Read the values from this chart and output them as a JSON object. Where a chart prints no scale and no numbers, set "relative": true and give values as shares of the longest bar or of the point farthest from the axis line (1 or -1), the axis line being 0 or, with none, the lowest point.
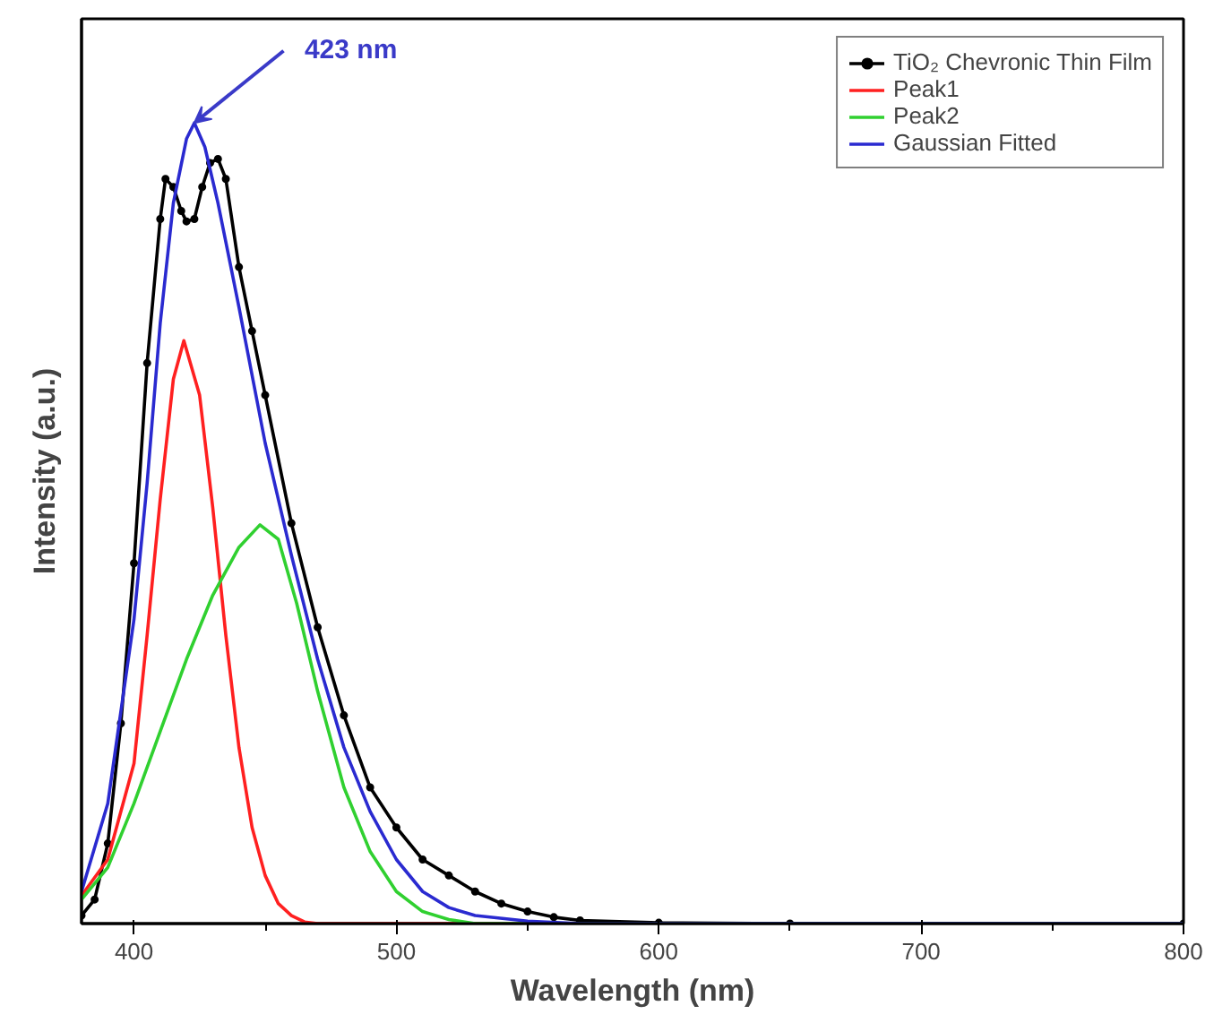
{
  "chart_data": {
    "type": "line",
    "relative": true,
    "xlabel": "Wavelength (nm)",
    "ylabel": "Intensity (a.u.)",
    "xlim": [
      380,
      800
    ],
    "xticks": [
      400,
      500,
      600,
      700,
      800
    ],
    "tick_labels": "x",
    "grid": false,
    "legend": "top right",
    "line_style": "solid",
    "annotations": [
      {
        "text": "423 nm",
        "x": 423,
        "y": 1.0
      }
    ],
    "series": [
      {
        "name": "TiO₂ Chevronic Thin Film",
        "color": "#000000",
        "marker": "circle",
        "x": [
          380,
          385,
          390,
          395,
          400,
          405,
          410,
          412,
          415,
          418,
          420,
          423,
          426,
          429,
          432,
          435,
          440,
          445,
          450,
          460,
          470,
          480,
          490,
          500,
          510,
          520,
          530,
          540,
          550,
          560,
          570,
          600,
          650,
          800
        ],
        "values": [
          0.01,
          0.03,
          0.1,
          0.25,
          0.45,
          0.7,
          0.88,
          0.93,
          0.92,
          0.89,
          0.877,
          0.88,
          0.92,
          0.95,
          0.955,
          0.93,
          0.82,
          0.74,
          0.66,
          0.5,
          0.37,
          0.26,
          0.17,
          0.12,
          0.08,
          0.06,
          0.04,
          0.025,
          0.015,
          0.008,
          0.004,
          0.001,
          0,
          0
        ]
      },
      {
        "name": "Peak1",
        "color": "#ff2020",
        "marker": "none",
        "x": [
          380,
          390,
          400,
          405,
          410,
          415,
          419,
          425,
          430,
          435,
          440,
          445,
          450,
          455,
          460,
          465,
          470,
          800
        ],
        "values": [
          0.035,
          0.08,
          0.2,
          0.36,
          0.53,
          0.68,
          0.728,
          0.66,
          0.52,
          0.36,
          0.22,
          0.12,
          0.06,
          0.025,
          0.01,
          0.002,
          0,
          0
        ]
      },
      {
        "name": "Peak2",
        "color": "#30d030",
        "marker": "none",
        "x": [
          380,
          390,
          400,
          410,
          420,
          430,
          440,
          448,
          455,
          462,
          470,
          480,
          490,
          500,
          510,
          520,
          530,
          800
        ],
        "values": [
          0.03,
          0.07,
          0.15,
          0.24,
          0.33,
          0.41,
          0.47,
          0.498,
          0.48,
          0.4,
          0.29,
          0.17,
          0.09,
          0.04,
          0.015,
          0.005,
          0,
          0
        ]
      },
      {
        "name": "Gaussian Fitted",
        "color": "#2a2ad0",
        "marker": "none",
        "x": [
          380,
          390,
          400,
          405,
          410,
          415,
          420,
          423,
          427,
          432,
          440,
          450,
          460,
          470,
          480,
          490,
          500,
          510,
          520,
          530,
          550,
          570,
          800
        ],
        "values": [
          0.04,
          0.15,
          0.38,
          0.55,
          0.75,
          0.9,
          0.98,
          1.0,
          0.97,
          0.9,
          0.77,
          0.6,
          0.46,
          0.33,
          0.22,
          0.14,
          0.08,
          0.04,
          0.02,
          0.01,
          0.003,
          0,
          0
        ]
      }
    ]
  }
}
